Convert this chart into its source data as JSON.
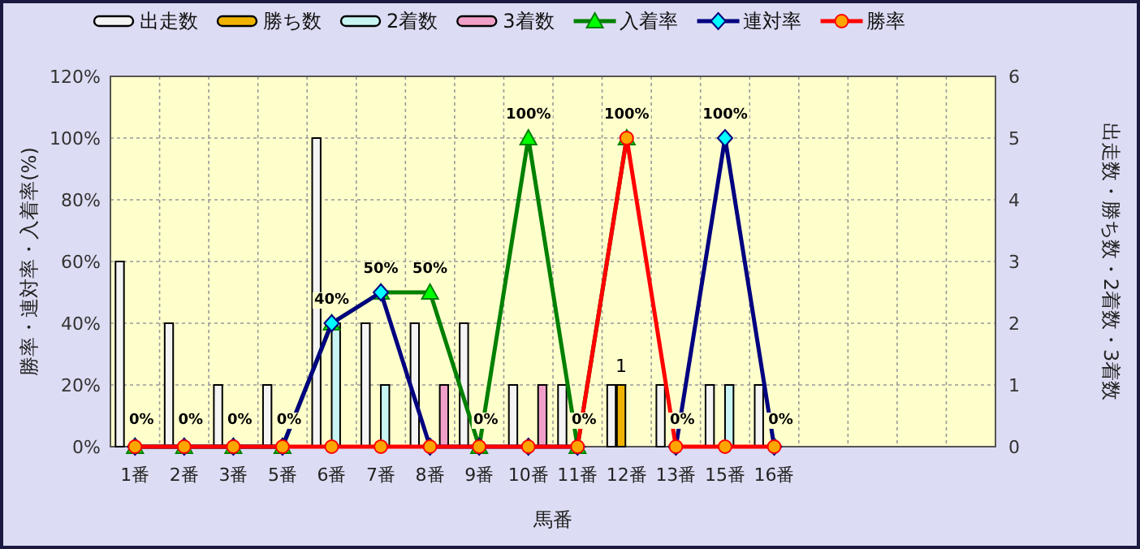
{
  "chart_data": {
    "type": "bar",
    "xlabel": "馬番",
    "ylabel": "勝率・連対率・入着率(%)",
    "y2label": "出走数・勝ち数・2着数・3着数",
    "categories": [
      "1番",
      "2番",
      "3番",
      "5番",
      "6番",
      "7番",
      "8番",
      "9番",
      "10番",
      "11番",
      "12番",
      "13番",
      "15番",
      "16番",
      null,
      null,
      null,
      null
    ],
    "ylim": [
      0,
      120
    ],
    "yticks": [
      {
        "value": 0,
        "label": "0%"
      },
      {
        "value": 20,
        "label": "20%"
      },
      {
        "value": 40,
        "label": "40%"
      },
      {
        "value": 60,
        "label": "60%"
      },
      {
        "value": 80,
        "label": "80%"
      },
      {
        "value": 100,
        "label": "100%"
      },
      {
        "value": 120,
        "label": "120%"
      }
    ],
    "y2lim": [
      0,
      6
    ],
    "y2ticks": [
      0,
      1,
      2,
      3,
      4,
      5,
      6
    ],
    "grid": true,
    "legend": "top",
    "series": [
      {
        "name": "出走数",
        "axis": "y2",
        "color": "#f4f4f4",
        "values": [
          3,
          2,
          1,
          1,
          5,
          2,
          2,
          2,
          1,
          1,
          1,
          1,
          1,
          1,
          null,
          null,
          null,
          null
        ]
      },
      {
        "name": "勝ち数",
        "axis": "y2",
        "color": "#f0b400",
        "values": [
          0,
          0,
          0,
          0,
          0,
          0,
          0,
          0,
          0,
          0,
          1,
          0,
          0,
          0,
          null,
          null,
          null,
          null
        ],
        "value_labels": [
          null,
          null,
          null,
          null,
          null,
          null,
          null,
          null,
          null,
          null,
          "1",
          null,
          null,
          null,
          null,
          null,
          null,
          null
        ]
      },
      {
        "name": "2着数",
        "axis": "y2",
        "color": "#c8f4f4",
        "values": [
          0,
          0,
          0,
          0,
          2,
          1,
          0,
          0,
          0,
          0,
          0,
          0,
          1,
          0,
          null,
          null,
          null,
          null
        ]
      },
      {
        "name": "3着数",
        "axis": "y2",
        "color": "#f0a0c8",
        "values": [
          0,
          0,
          0,
          0,
          0,
          0,
          1,
          0,
          1,
          0,
          0,
          0,
          0,
          0,
          null,
          null,
          null,
          null
        ]
      },
      {
        "name": "入着率",
        "type": "line",
        "color": "#008000",
        "marker": "triangle",
        "values": [
          0,
          0,
          0,
          0,
          40,
          50,
          50,
          0,
          100,
          0,
          100,
          null,
          null,
          null,
          null,
          null,
          null,
          null
        ],
        "value_labels": [
          "0%",
          "0%",
          "0%",
          "0%",
          "40%",
          "50%",
          "50%",
          "0%",
          "100%",
          "0%",
          "100%",
          null,
          null,
          null,
          null,
          null,
          null,
          null
        ]
      },
      {
        "name": "連対率",
        "type": "line",
        "color": "#000080",
        "marker": "diamond",
        "values": [
          0,
          0,
          0,
          0,
          40,
          50,
          0,
          0,
          0,
          0,
          null,
          0,
          100,
          0,
          null,
          null,
          null,
          null
        ],
        "value_labels": [
          null,
          null,
          null,
          null,
          null,
          null,
          null,
          null,
          null,
          null,
          null,
          null,
          "100%",
          null,
          null,
          null,
          null,
          null
        ]
      },
      {
        "name": "勝率",
        "type": "line",
        "color": "#ff0000",
        "marker": "circle",
        "values": [
          0,
          0,
          0,
          0,
          0,
          0,
          0,
          0,
          0,
          0,
          100,
          0,
          0,
          0,
          null,
          null,
          null,
          null
        ],
        "value_labels": [
          null,
          null,
          null,
          null,
          null,
          null,
          null,
          null,
          null,
          null,
          null,
          "0%",
          null,
          "0%",
          null,
          null,
          null,
          null
        ]
      }
    ]
  }
}
